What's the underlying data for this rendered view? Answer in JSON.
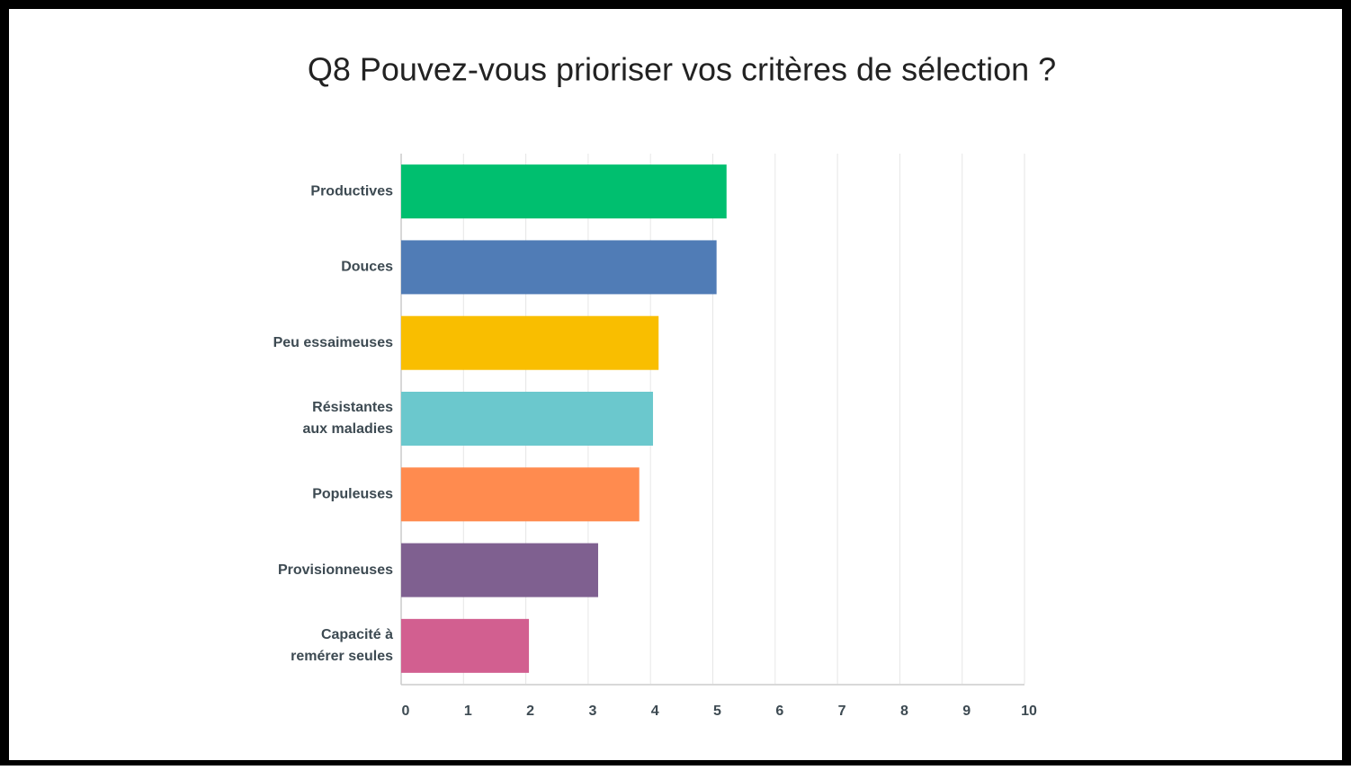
{
  "chart_data": {
    "type": "bar",
    "orientation": "horizontal",
    "title": "Q8 Pouvez-vous prioriser vos critères de sélection ?",
    "categories": [
      "Productives",
      "Douces",
      "Peu essaimeuses",
      "Résistantes\naux maladies",
      "Populeuses",
      "Provisionneuses",
      "Capacité à\nremérer seules"
    ],
    "values": [
      5.22,
      5.06,
      4.13,
      4.04,
      3.82,
      3.16,
      2.05
    ],
    "colors": [
      "#00bf6f",
      "#507cb6",
      "#f9be00",
      "#6bc8cd",
      "#ff8b4f",
      "#7f6090",
      "#d25f90"
    ],
    "xlim": [
      0,
      10
    ],
    "xticks": [
      0,
      1,
      2,
      3,
      4,
      5,
      6,
      7,
      8,
      9,
      10
    ],
    "grid": true
  }
}
